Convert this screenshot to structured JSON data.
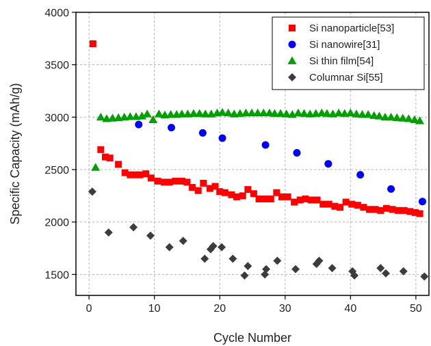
{
  "chart_data": {
    "type": "scatter",
    "xlabel": "Cycle Number",
    "ylabel": "Specific Capacity (mAh/g)",
    "xlim": [
      -2,
      52
    ],
    "ylim": [
      1300,
      4000
    ],
    "xticks": [
      0,
      10,
      20,
      30,
      40,
      50
    ],
    "yticks": [
      1500,
      2000,
      2500,
      3000,
      3500,
      4000
    ],
    "grid": "dashed",
    "legend_position": "top-right",
    "series": [
      {
        "name": "Si nanoparticle[53]",
        "marker": "square",
        "color": "#ff0000",
        "x": [
          0.6,
          1.8,
          2.5,
          3.2,
          4.5,
          5.5,
          6.3,
          7.0,
          7.8,
          8.7,
          9.5,
          10.5,
          11.5,
          12.3,
          13.2,
          14.2,
          15.0,
          15.8,
          16.7,
          17.5,
          18.5,
          19.3,
          20.0,
          20.8,
          21.8,
          22.6,
          23.5,
          24.3,
          25.2,
          26.0,
          27.0,
          27.8,
          28.7,
          29.5,
          30.4,
          31.4,
          32.3,
          33.1,
          34.0,
          34.9,
          35.8,
          36.7,
          37.6,
          38.4,
          39.3,
          40.2,
          41.1,
          42.0,
          42.9,
          43.8,
          44.6,
          45.5,
          46.4,
          47.3,
          48.2,
          49.1,
          49.9,
          50.6
        ],
        "y": [
          3700,
          2690,
          2620,
          2610,
          2550,
          2470,
          2450,
          2450,
          2450,
          2460,
          2420,
          2390,
          2380,
          2380,
          2390,
          2390,
          2380,
          2330,
          2300,
          2370,
          2320,
          2340,
          2290,
          2280,
          2260,
          2240,
          2250,
          2310,
          2270,
          2220,
          2220,
          2220,
          2280,
          2240,
          2240,
          2190,
          2210,
          2220,
          2210,
          2210,
          2170,
          2170,
          2150,
          2140,
          2190,
          2170,
          2160,
          2140,
          2120,
          2120,
          2110,
          2130,
          2120,
          2110,
          2110,
          2100,
          2090,
          2080
        ]
      },
      {
        "name": "Si nanowire[31]",
        "marker": "circle",
        "color": "#0000ff",
        "x": [
          7.6,
          12.6,
          17.4,
          20.4,
          27.0,
          31.8,
          36.6,
          41.5,
          46.2,
          51.0
        ],
        "y": [
          2930,
          2900,
          2850,
          2800,
          2735,
          2660,
          2555,
          2450,
          2315,
          2195
        ]
      },
      {
        "name": "Si thin film[54]",
        "marker": "triangle",
        "color": "#00a000",
        "x": [
          1.0,
          1.8,
          2.7,
          3.6,
          4.5,
          5.4,
          6.3,
          7.2,
          8.1,
          8.9,
          9.8,
          10.7,
          11.6,
          12.5,
          13.4,
          14.2,
          15.1,
          16.0,
          16.9,
          17.8,
          18.7,
          19.6,
          20.4,
          21.3,
          22.2,
          23.1,
          24.0,
          24.9,
          25.8,
          26.7,
          27.6,
          28.4,
          29.3,
          30.2,
          31.1,
          32.0,
          32.9,
          33.8,
          34.7,
          35.6,
          36.4,
          37.3,
          38.2,
          39.1,
          40.0,
          40.9,
          41.8,
          42.7,
          43.6,
          44.4,
          45.3,
          46.2,
          47.1,
          48.0,
          48.9,
          49.8,
          50.6
        ],
        "y": [
          2520,
          3000,
          2985,
          2990,
          2995,
          3000,
          3005,
          3005,
          3010,
          3030,
          2975,
          3030,
          3020,
          3025,
          3025,
          3030,
          3030,
          3035,
          3035,
          3030,
          3030,
          3040,
          3045,
          3040,
          3030,
          3035,
          3040,
          3040,
          3040,
          3040,
          3040,
          3035,
          3035,
          3030,
          3025,
          3040,
          3035,
          3030,
          3035,
          3040,
          3035,
          3030,
          3040,
          3035,
          3040,
          3030,
          3025,
          3025,
          3015,
          3010,
          3000,
          3000,
          2995,
          2990,
          2985,
          2975,
          2965
        ]
      },
      {
        "name": "Columnar Si[55]",
        "marker": "diamond",
        "color": "#3c3c3c",
        "x": [
          0.5,
          3.0,
          6.8,
          9.4,
          12.3,
          14.4,
          17.7,
          18.6,
          19.0,
          20.3,
          22.0,
          23.8,
          24.3,
          26.9,
          27.1,
          28.8,
          31.6,
          34.8,
          35.2,
          37.2,
          40.3,
          40.6,
          44.6,
          45.4,
          48.1,
          51.3
        ],
        "y": [
          2290,
          1900,
          1950,
          1870,
          1760,
          1820,
          1650,
          1740,
          1770,
          1760,
          1650,
          1490,
          1580,
          1500,
          1550,
          1630,
          1550,
          1600,
          1630,
          1560,
          1530,
          1490,
          1560,
          1510,
          1530,
          1480
        ]
      }
    ]
  }
}
